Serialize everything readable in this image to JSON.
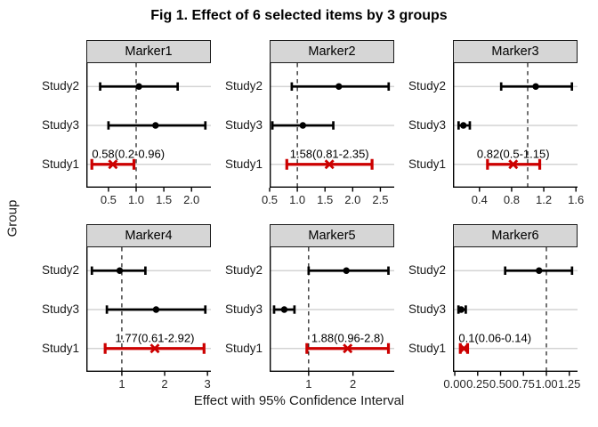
{
  "title": "Fig 1. Effect of 6 selected items by 3 groups",
  "x_axis_label": "Effect with 95% Confidence Interval",
  "y_axis_label": "Group",
  "colors": {
    "highlight": "#CC0000",
    "series": "#000000",
    "strip_bg": "#D6D6D6",
    "strip_border": "#1A1A1A",
    "gridline": "#CBCBCB",
    "axis_line": "#000000",
    "tick_text": "#262626",
    "annotation_text": "#000000"
  },
  "chart_data": {
    "type": "forest",
    "facet_by": "Marker",
    "y_categories": [
      "Study2",
      "Study3",
      "Study1"
    ],
    "reference_line": 1.0,
    "grid": "horizontal-only",
    "panels": [
      {
        "label": "Marker1",
        "xlim": [
          0.1,
          2.35
        ],
        "ticks": [
          0.5,
          1.0,
          1.5,
          2.0
        ],
        "tick_labels": [
          "0.5",
          "1.0",
          "1.5",
          "2.0"
        ],
        "rows": [
          {
            "study": "Study2",
            "est": 1.05,
            "lo": 0.35,
            "hi": 1.75,
            "highlight": false
          },
          {
            "study": "Study3",
            "est": 1.35,
            "lo": 0.5,
            "hi": 2.25,
            "highlight": false
          },
          {
            "study": "Study1",
            "est": 0.58,
            "lo": 0.2,
            "hi": 0.96,
            "highlight": true,
            "annotation": "0.58(0.2-0.96)"
          }
        ]
      },
      {
        "label": "Marker2",
        "xlim": [
          0.5,
          2.75
        ],
        "ticks": [
          0.5,
          1.0,
          1.5,
          2.0,
          2.5
        ],
        "tick_labels": [
          "0.5",
          "1.0",
          "1.5",
          "2.0",
          "2.5"
        ],
        "rows": [
          {
            "study": "Study2",
            "est": 1.75,
            "lo": 0.9,
            "hi": 2.65,
            "highlight": false
          },
          {
            "study": "Study3",
            "est": 1.1,
            "lo": 0.55,
            "hi": 1.65,
            "highlight": false
          },
          {
            "study": "Study1",
            "est": 1.58,
            "lo": 0.81,
            "hi": 2.35,
            "highlight": true,
            "annotation": "1.58(0.81-2.35)"
          }
        ]
      },
      {
        "label": "Marker3",
        "xlim": [
          0.07,
          1.62
        ],
        "ticks": [
          0.4,
          0.8,
          1.2,
          1.6
        ],
        "tick_labels": [
          "0.4",
          "0.8",
          "1.2",
          "1.6"
        ],
        "rows": [
          {
            "study": "Study2",
            "est": 1.1,
            "lo": 0.67,
            "hi": 1.55,
            "highlight": false
          },
          {
            "study": "Study3",
            "est": 0.2,
            "lo": 0.14,
            "hi": 0.28,
            "highlight": false
          },
          {
            "study": "Study1",
            "est": 0.82,
            "lo": 0.5,
            "hi": 1.15,
            "highlight": true,
            "annotation": "0.82(0.5-1.15)"
          }
        ]
      },
      {
        "label": "Marker4",
        "xlim": [
          0.17,
          3.08
        ],
        "ticks": [
          1,
          2,
          3
        ],
        "tick_labels": [
          "1",
          "2",
          "3"
        ],
        "rows": [
          {
            "study": "Study2",
            "est": 0.95,
            "lo": 0.3,
            "hi": 1.55,
            "highlight": false
          },
          {
            "study": "Study3",
            "est": 1.8,
            "lo": 0.65,
            "hi": 2.95,
            "highlight": false
          },
          {
            "study": "Study1",
            "est": 1.77,
            "lo": 0.61,
            "hi": 2.92,
            "highlight": true,
            "annotation": "1.77(0.61-2.92)"
          }
        ]
      },
      {
        "label": "Marker5",
        "xlim": [
          0.12,
          2.93
        ],
        "ticks": [
          1,
          2
        ],
        "tick_labels": [
          "1",
          "2"
        ],
        "rows": [
          {
            "study": "Study2",
            "est": 1.85,
            "lo": 1.0,
            "hi": 2.8,
            "highlight": false
          },
          {
            "study": "Study3",
            "est": 0.45,
            "lo": 0.22,
            "hi": 0.68,
            "highlight": false
          },
          {
            "study": "Study1",
            "est": 1.88,
            "lo": 0.96,
            "hi": 2.8,
            "highlight": true,
            "annotation": "1.88(0.96-2.8)"
          }
        ]
      },
      {
        "label": "Marker6",
        "xlim": [
          -0.02,
          1.34
        ],
        "ticks": [
          0,
          0.25,
          0.5,
          0.75,
          1.0,
          1.25
        ],
        "tick_labels": [
          "0.00",
          "0.25",
          "0.50",
          "0.75",
          "1.00",
          "1.25"
        ],
        "rows": [
          {
            "study": "Study2",
            "est": 0.92,
            "lo": 0.55,
            "hi": 1.28,
            "highlight": false
          },
          {
            "study": "Study3",
            "est": 0.07,
            "lo": 0.04,
            "hi": 0.12,
            "highlight": false
          },
          {
            "study": "Study1",
            "est": 0.1,
            "lo": 0.06,
            "hi": 0.14,
            "highlight": true,
            "annotation": "0.1(0.06-0.14)"
          }
        ]
      }
    ]
  }
}
